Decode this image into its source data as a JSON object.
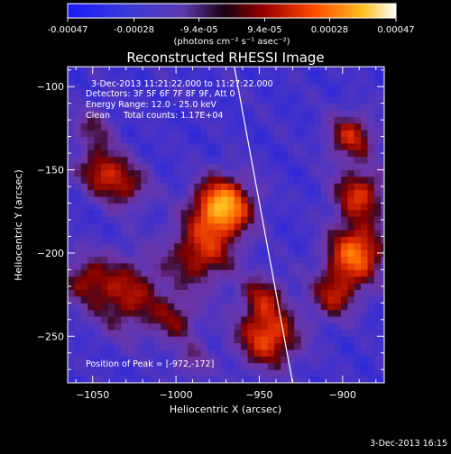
{
  "chart_data": {
    "type": "heatmap",
    "title": "Reconstructed RHESSI Image",
    "xlabel": "Heliocentric X (arcsec)",
    "ylabel": "Heliocentric Y (arcsec)",
    "xlim": [
      -1065,
      -875
    ],
    "ylim": [
      -278,
      -88
    ],
    "xticks": [
      -1050,
      -1000,
      -950,
      -900
    ],
    "yticks": [
      -100,
      -150,
      -200,
      -250
    ],
    "colorbar": {
      "range": [
        -0.00047,
        0.00047
      ],
      "tick_values": [
        -0.00047,
        -0.00028,
        -9.4e-05,
        9.4e-05,
        0.00028,
        0.00047
      ],
      "tick_labels": [
        "-0.00047",
        "-0.00028",
        "-9.4e-05",
        "9.4e-05",
        "0.00028",
        "0.00047"
      ],
      "unit_label": "(photons cm⁻² s⁻¹ asec⁻²)"
    },
    "annotations": {
      "time_range": "3-Dec-2013 11:21:22.000 to 11:27:22.000",
      "detectors": "Detectors: 3F 5F 6F 7F 8F 9F, Att 0",
      "energy_range": "Energy Range: 12.0 - 25.0 keV",
      "clean_counts": "Clean     Total counts: 1.17E+04",
      "peak_position": "Position of Peak = [-972,-172]"
    },
    "limb_line": {
      "x": [
        -965,
        -930
      ],
      "y": [
        -88,
        -278
      ]
    },
    "sources": [
      {
        "x": -972,
        "y": -172,
        "sigma": 12,
        "amp": 1.0
      },
      {
        "x": -985,
        "y": -200,
        "sigma": 14,
        "amp": 0.55
      },
      {
        "x": -1030,
        "y": -225,
        "sigma": 16,
        "amp": 0.5
      },
      {
        "x": -1055,
        "y": -215,
        "sigma": 10,
        "amp": 0.35
      },
      {
        "x": -1045,
        "y": -150,
        "sigma": 10,
        "amp": 0.5
      },
      {
        "x": -1030,
        "y": -160,
        "sigma": 10,
        "amp": 0.4
      },
      {
        "x": -1050,
        "y": -125,
        "sigma": 9,
        "amp": 0.3
      },
      {
        "x": -895,
        "y": -130,
        "sigma": 10,
        "amp": 0.55
      },
      {
        "x": -890,
        "y": -165,
        "sigma": 11,
        "amp": 0.6
      },
      {
        "x": -892,
        "y": -200,
        "sigma": 12,
        "amp": 0.8
      },
      {
        "x": -905,
        "y": -225,
        "sigma": 10,
        "amp": 0.5
      },
      {
        "x": -945,
        "y": -250,
        "sigma": 13,
        "amp": 0.7
      },
      {
        "x": -948,
        "y": -225,
        "sigma": 9,
        "amp": 0.4
      },
      {
        "x": -1000,
        "y": -240,
        "sigma": 10,
        "amp": 0.35
      },
      {
        "x": -990,
        "y": -265,
        "sigma": 8,
        "amp": 0.25
      }
    ],
    "grid": false
  },
  "footer": {
    "timestamp": "3-Dec-2013 16:15"
  }
}
